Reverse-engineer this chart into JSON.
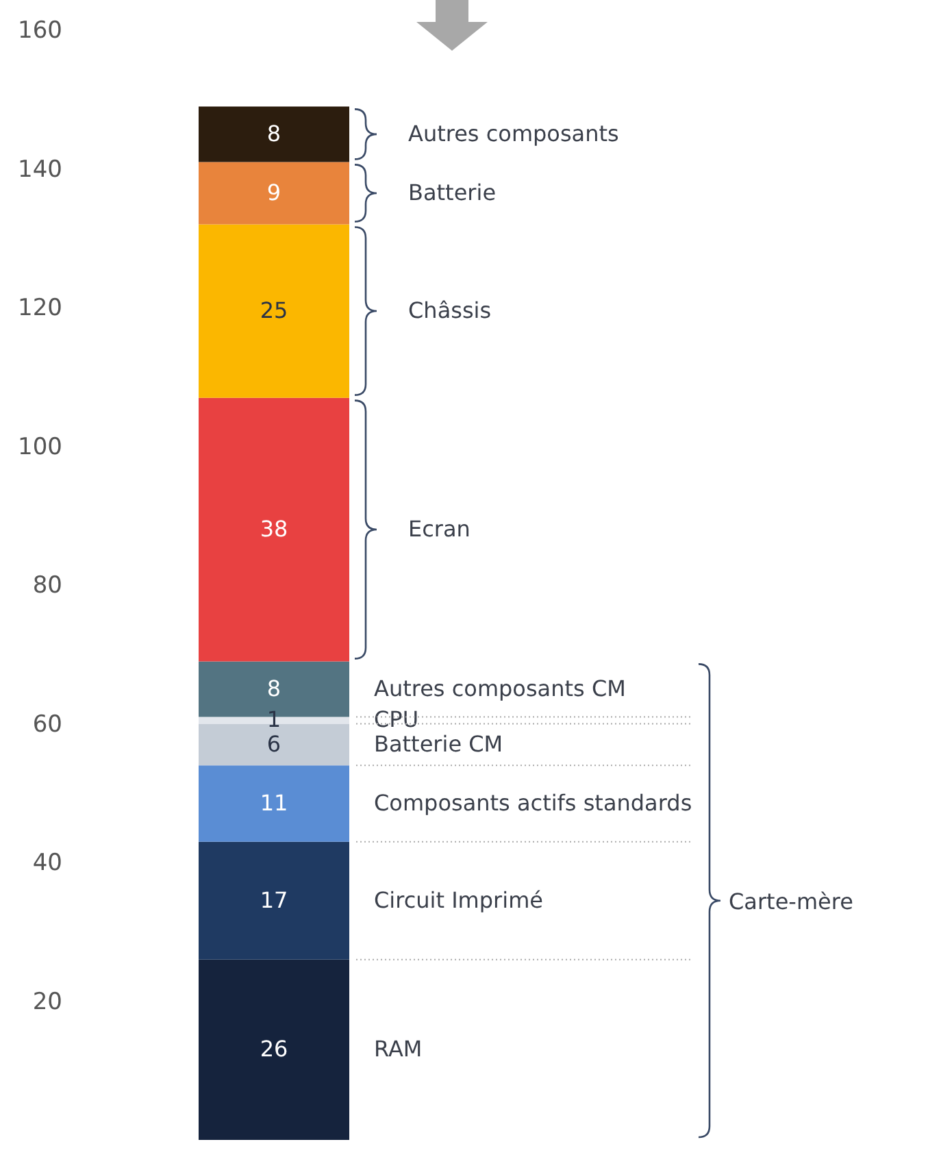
{
  "chart_data": {
    "type": "bar",
    "stacked": true,
    "categories": [
      null
    ],
    "series": [
      {
        "name": "RAM",
        "color": "#15233d",
        "values": [
          26
        ]
      },
      {
        "name": "Circuit Imprimé",
        "color": "#1f3a62",
        "values": [
          17
        ]
      },
      {
        "name": "Composants actifs standards",
        "color": "#5a8dd4",
        "values": [
          11
        ]
      },
      {
        "name": "Batterie CM",
        "color": "#c4ccd6",
        "values": [
          6
        ]
      },
      {
        "name": "CPU",
        "color": "#e2e6ec",
        "values": [
          1
        ]
      },
      {
        "name": "Autres composants CM",
        "color": "#537482",
        "values": [
          8
        ]
      },
      {
        "name": "Ecran",
        "color": "#e84141",
        "values": [
          38
        ]
      },
      {
        "name": "Châssis",
        "color": "#fbb700",
        "values": [
          25
        ]
      },
      {
        "name": "Batterie",
        "color": "#e8843c",
        "values": [
          9
        ]
      },
      {
        "name": "Autres composants",
        "color": "#2c1d0e",
        "values": [
          8
        ]
      }
    ],
    "ylim": [
      0,
      160
    ],
    "yticks": [
      20,
      40,
      60,
      80,
      100,
      120,
      140,
      160
    ],
    "data_labels": true,
    "annotations": [
      "Carte-mère"
    ]
  }
}
